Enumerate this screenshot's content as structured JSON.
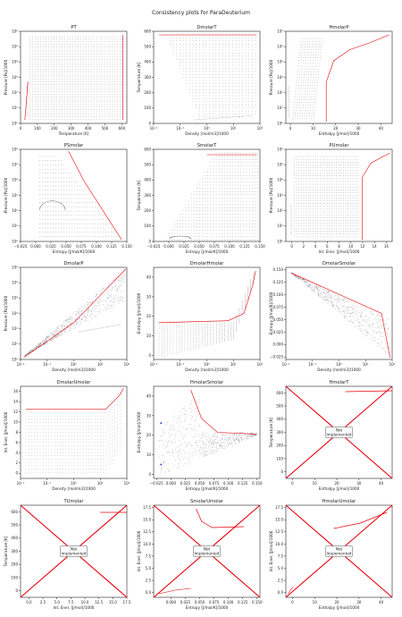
{
  "figure_title": "Consistency plots for ParaDeuterium",
  "colors": {
    "dots": "#333333",
    "highlight": "#e8000b",
    "axis": "#222222"
  },
  "not_implemented_label": "Not Implemented",
  "chart_data": [
    {
      "title": "PT",
      "type": "scatter",
      "xlabel": "Temperature [K]",
      "ylabel": "Pressure [Pa]/1000",
      "xlim": [
        0,
        630
      ],
      "ylim": [
        1,
        1000000
      ],
      "yscale": "log",
      "xticks": [
        "0",
        "100",
        "200",
        "300",
        "400",
        "500",
        "600"
      ],
      "yticks": [
        "10⁰",
        "10¹",
        "10²",
        "10³",
        "10⁴",
        "10⁵",
        "10⁶"
      ]
    },
    {
      "title": "DmolarT",
      "type": "scatter",
      "xlabel": "Density [mol/m3]/1000",
      "ylabel": "Temperature [K]",
      "xlim": [
        0.01,
        100
      ],
      "ylim": [
        0,
        600
      ],
      "xscale": "log",
      "xticks": [
        "10⁻²",
        "10⁻¹",
        "10⁰",
        "10¹",
        "10²"
      ],
      "yticks": [
        "0",
        "100",
        "200",
        "300",
        "400",
        "500",
        "600"
      ]
    },
    {
      "title": "HmolarP",
      "type": "scatter",
      "xlabel": "Enthalpy [J/mol]/1000",
      "ylabel": "Pressure [Pa]/1000",
      "xlim": [
        -2,
        45
      ],
      "ylim": [
        1,
        1000000
      ],
      "yscale": "log",
      "xticks": [
        "0",
        "10",
        "20",
        "30",
        "40"
      ],
      "yticks": [
        "10⁰",
        "10¹",
        "10²",
        "10³",
        "10⁴",
        "10⁵",
        "10⁶"
      ]
    },
    {
      "title": "PSmolar",
      "type": "scatter",
      "xlabel": "Entropy [J/mol/K]/1000",
      "ylabel": "Pressure [Pa]/1000",
      "xlim": [
        -0.025,
        0.15
      ],
      "ylim": [
        1,
        1000000
      ],
      "yscale": "log",
      "xticks": [
        "−0.025",
        "0.000",
        "0.025",
        "0.050",
        "0.075",
        "0.100",
        "0.125",
        "0.150"
      ],
      "yticks": [
        "10⁰",
        "10¹",
        "10²",
        "10³",
        "10⁴",
        "10⁵",
        "10⁶"
      ]
    },
    {
      "title": "SmolarT",
      "type": "scatter",
      "xlabel": "Entropy [J/mol/K]/1000",
      "ylabel": "Temperature [K]",
      "xlim": [
        -0.025,
        0.15
      ],
      "ylim": [
        0,
        600
      ],
      "xticks": [
        "−0.025",
        "0.000",
        "0.025",
        "0.050",
        "0.075",
        "0.100",
        "0.125",
        "0.150"
      ],
      "yticks": [
        "0",
        "100",
        "200",
        "300",
        "400",
        "500",
        "600"
      ]
    },
    {
      "title": "PUmolar",
      "type": "scatter",
      "xlabel": "Int. Ener. [J/mol]/1000",
      "ylabel": "Pressure [Pa]/1000",
      "xlim": [
        -1,
        17
      ],
      "ylim": [
        1,
        1000000
      ],
      "yscale": "log",
      "xticks": [
        "0",
        "2",
        "4",
        "6",
        "8",
        "10",
        "12",
        "14",
        "16"
      ],
      "yticks": [
        "10⁰",
        "10¹",
        "10²",
        "10³",
        "10⁴",
        "10⁵",
        "10⁶"
      ]
    },
    {
      "title": "DmolarP",
      "type": "scatter",
      "xlabel": "Density [mol/m3]/1000",
      "ylabel": "Pressure [Pa]/1000",
      "xlim": [
        0.01,
        100
      ],
      "ylim": [
        1,
        1000000
      ],
      "xscale": "log",
      "yscale": "log",
      "xticks": [
        "10⁻²",
        "10⁻¹",
        "10⁰",
        "10¹",
        "10²"
      ],
      "yticks": [
        "10⁰",
        "10¹",
        "10²",
        "10³",
        "10⁴",
        "10⁵",
        "10⁶"
      ]
    },
    {
      "title": "DmolarHmolar",
      "type": "scatter",
      "xlabel": "Density [mol/m3]/1000",
      "ylabel": "Enthalpy [J/mol]/1000",
      "xlim": [
        0.01,
        100
      ],
      "ylim": [
        -2,
        45
      ],
      "xscale": "log",
      "xticks": [
        "10⁻²",
        "10⁻¹",
        "10⁰",
        "10¹",
        "10²"
      ],
      "yticks": [
        "0",
        "10",
        "20",
        "30",
        "40"
      ]
    },
    {
      "title": "DmolarSmolar",
      "type": "scatter",
      "xlabel": "Density [mol/m3]/1000",
      "ylabel": "Entropy [J/mol/K]/1000",
      "xlim": [
        0.01,
        100
      ],
      "ylim": [
        -0.03,
        0.155
      ],
      "xscale": "log",
      "xticks": [
        "10⁻²",
        "10⁻¹",
        "10⁰",
        "10¹",
        "10²"
      ],
      "yticks": [
        "−0.025",
        "0.000",
        "0.025",
        "0.050",
        "0.075",
        "0.100",
        "0.125",
        "0.150"
      ]
    },
    {
      "title": "DmolarUmolar",
      "type": "scatter",
      "xlabel": "Density [mol/m3]/1000",
      "ylabel": "Int. Ener. [J/mol]/1000",
      "xlim": [
        0.01,
        100
      ],
      "ylim": [
        -1,
        17
      ],
      "xscale": "log",
      "xticks": [
        "10⁻²",
        "10⁻¹",
        "10⁰",
        "10¹",
        "10²"
      ],
      "yticks": [
        "0",
        "2",
        "4",
        "6",
        "8",
        "10",
        "12",
        "14",
        "16"
      ]
    },
    {
      "title": "HmolarSmolar",
      "type": "scatter",
      "xlabel": "Entropy [J/mol/K]/1000",
      "ylabel": "Enthalpy [J/mol]/1000",
      "xlim": [
        -0.03,
        0.155
      ],
      "ylim": [
        -2,
        45
      ],
      "xticks": [
        "−0.025",
        "0.000",
        "0.025",
        "0.050",
        "0.075",
        "0.100",
        "0.125",
        "0.150"
      ],
      "yticks": [
        "0",
        "10",
        "20",
        "30",
        "40"
      ]
    },
    {
      "title": "HmolarT",
      "type": "not_implemented",
      "xlabel": "Enthalpy [J/mol]/1000",
      "ylabel": "Temperature [K]",
      "xlim": [
        -3,
        45
      ],
      "ylim": [
        -50,
        650
      ],
      "xticks": [
        "0",
        "10",
        "20",
        "30",
        "40"
      ],
      "yticks": [
        "0",
        "100",
        "200",
        "300",
        "400",
        "500",
        "600"
      ]
    },
    {
      "title": "TUmolar",
      "type": "not_implemented",
      "xlabel": "Int. Ener. [J/mol]/1000",
      "ylabel": "Temperature [K]",
      "xlim": [
        -1.5,
        17.5
      ],
      "ylim": [
        -50,
        650
      ],
      "xticks": [
        "0.0",
        "2.5",
        "5.0",
        "7.5",
        "10.0",
        "12.5",
        "15.0",
        "17.5"
      ],
      "yticks": [
        "0",
        "100",
        "200",
        "300",
        "400",
        "500",
        "600"
      ]
    },
    {
      "title": "SmolarUmolar",
      "type": "not_implemented",
      "xlabel": "Entropy [J/mol/K]/1000",
      "ylabel": "Int. Ener. [J/mol]/1000",
      "xlim": [
        -0.03,
        0.155
      ],
      "ylim": [
        -1,
        18
      ],
      "xticks": [
        "0.000",
        "0.025",
        "0.050",
        "0.075",
        "0.100",
        "0.125",
        "0.150"
      ],
      "yticks": [
        "0.0",
        "2.5",
        "5.0",
        "7.5",
        "10.0",
        "12.5",
        "15.0",
        "17.5"
      ]
    },
    {
      "title": "HmolarUmolar",
      "type": "not_implemented",
      "xlabel": "Enthalpy [J/mol]/1000",
      "ylabel": "Int. Ener. [J/mol]/1000",
      "xlim": [
        -3,
        45
      ],
      "ylim": [
        -1,
        18
      ],
      "xticks": [
        "0",
        "10",
        "20",
        "30",
        "40"
      ],
      "yticks": [
        "0.0",
        "2.5",
        "5.0",
        "7.5",
        "10.0",
        "12.5",
        "15.0",
        "17.5"
      ]
    }
  ]
}
